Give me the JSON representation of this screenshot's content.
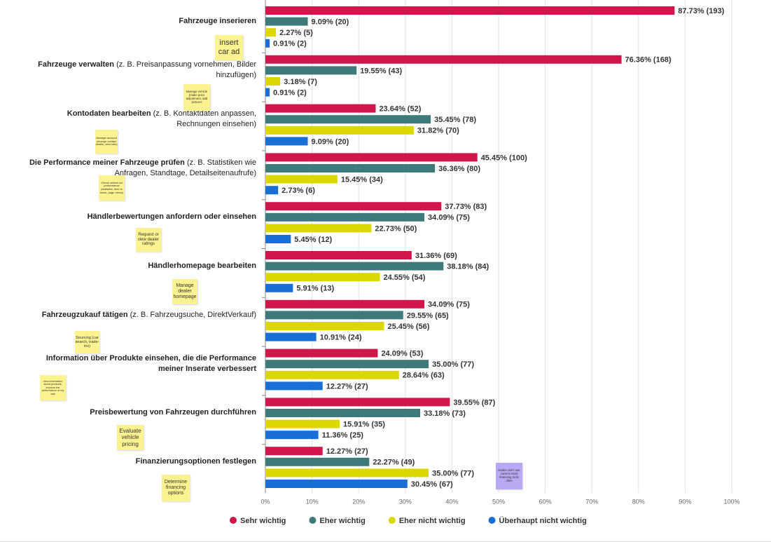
{
  "chart_data": {
    "type": "hbar",
    "categories": [
      "Fahrzeuge inserieren",
      "Fahrzeuge verwalten",
      "Kontodaten bearbeiten",
      "Die Performance meiner Fahrzeuge prüfen",
      "Händlerbewertungen anfordern oder einsehen",
      "Händlerhomepage bearbeiten",
      "Fahrzeugzukauf tätigen",
      "Information über Produkte einsehen, die die Performance meiner Inserate verbessert",
      "Preisbewertung von Fahrzeugen durchführen",
      "Finanzierungsoptionen festlegen"
    ],
    "category_details": [
      null,
      "(z. B. Preisanpassung vornehmen, Bilder hinzufügen)",
      "(z. B. Kontaktdaten anpassen, Rechnungen einsehen)",
      "(z. B. Statistiken wie Anfragen, Standtage, Detailseitenaufrufe)",
      null,
      null,
      "(z. B. Fahrzeugsuche, DirektVerkauf)",
      null,
      null,
      null
    ],
    "series": [
      {
        "name": "Sehr wichtig",
        "color": "#d0164b",
        "values": [
          87.73,
          76.36,
          23.64,
          45.45,
          37.73,
          31.36,
          34.09,
          24.09,
          39.55,
          12.27
        ],
        "value_labels": [
          "87.73% (193)",
          "76.36% (168)",
          "23.64% (52)",
          "45.45% (100)",
          "37.73% (83)",
          "31.36% (69)",
          "34.09% (75)",
          "24.09% (53)",
          "39.55% (87)",
          "12.27% (27)"
        ]
      },
      {
        "name": "Eher wichtig",
        "color": "#3f7a7a",
        "values": [
          9.09,
          19.55,
          35.45,
          36.36,
          34.09,
          38.18,
          29.55,
          35.0,
          33.18,
          22.27
        ],
        "value_labels": [
          "9.09% (20)",
          "19.55% (43)",
          "35.45% (78)",
          "36.36% (80)",
          "34.09% (75)",
          "38.18% (84)",
          "29.55% (65)",
          "35.00% (77)",
          "33.18% (73)",
          "22.27% (49)"
        ]
      },
      {
        "name": "Eher nicht wichtig",
        "color": "#dbd800",
        "values": [
          2.27,
          3.18,
          31.82,
          15.45,
          22.73,
          24.55,
          25.45,
          28.64,
          15.91,
          35.0
        ],
        "value_labels": [
          "2.27% (5)",
          "3.18% (7)",
          "31.82% (70)",
          "15.45% (34)",
          "22.73% (50)",
          "24.55% (54)",
          "25.45% (56)",
          "28.64% (63)",
          "15.91% (35)",
          "35.00% (77)"
        ]
      },
      {
        "name": "Überhaupt nicht wichtig",
        "color": "#1a6fd6",
        "values": [
          0.91,
          0.91,
          9.09,
          2.73,
          5.45,
          5.91,
          10.91,
          12.27,
          11.36,
          30.45
        ],
        "value_labels": [
          "0.91% (2)",
          "0.91% (2)",
          "9.09% (20)",
          "2.73% (6)",
          "5.45% (12)",
          "5.91% (13)",
          "10.91% (24)",
          "12.27% (27)",
          "11.36% (25)",
          "30.45% (67)"
        ]
      }
    ],
    "xlim": [
      0,
      100
    ],
    "xticks": [
      {
        "value": 0,
        "label": "0%"
      },
      {
        "value": 10,
        "label": "10%"
      },
      {
        "value": 20,
        "label": "20%"
      },
      {
        "value": 30,
        "label": "30%"
      },
      {
        "value": 40,
        "label": "40%"
      },
      {
        "value": 50,
        "label": "50%"
      },
      {
        "value": 60,
        "label": "60%"
      },
      {
        "value": 70,
        "label": "70%"
      },
      {
        "value": 80,
        "label": "80%"
      },
      {
        "value": 90,
        "label": "90%"
      },
      {
        "value": 100,
        "label": "100%"
      }
    ],
    "grid": true,
    "legend": "bottom",
    "annotations": [
      {
        "text": "insert car ad",
        "color": "#fbf38f"
      },
      {
        "text": "Manage vehicle (make price adjustment, add pictures",
        "color": "#fbf38f"
      },
      {
        "text": "Manage account (change contact details, view bills)",
        "color": "#fbf38f"
      },
      {
        "text": "Check vehicle ad performance (statistics, time in stock, page views)",
        "color": "#fbf38f"
      },
      {
        "text": "Request or view dealer ratings",
        "color": "#fbf38f"
      },
      {
        "text": "Manage dealer homepage",
        "color": "#fbf38f"
      },
      {
        "text": "Sourcing (car search, trade-ins)",
        "color": "#fbf38f"
      },
      {
        "text": "view information about products, improve the performance of my ads",
        "color": "#fbf38f"
      },
      {
        "text": "Evaluate vehicle pricing",
        "color": "#fbf38f"
      },
      {
        "text": "Determine financing options",
        "color": "#fbf38f"
      },
      {
        "text": "Dealer don't use current AS24 financing tools often",
        "color": "#b9a8f2"
      }
    ]
  }
}
